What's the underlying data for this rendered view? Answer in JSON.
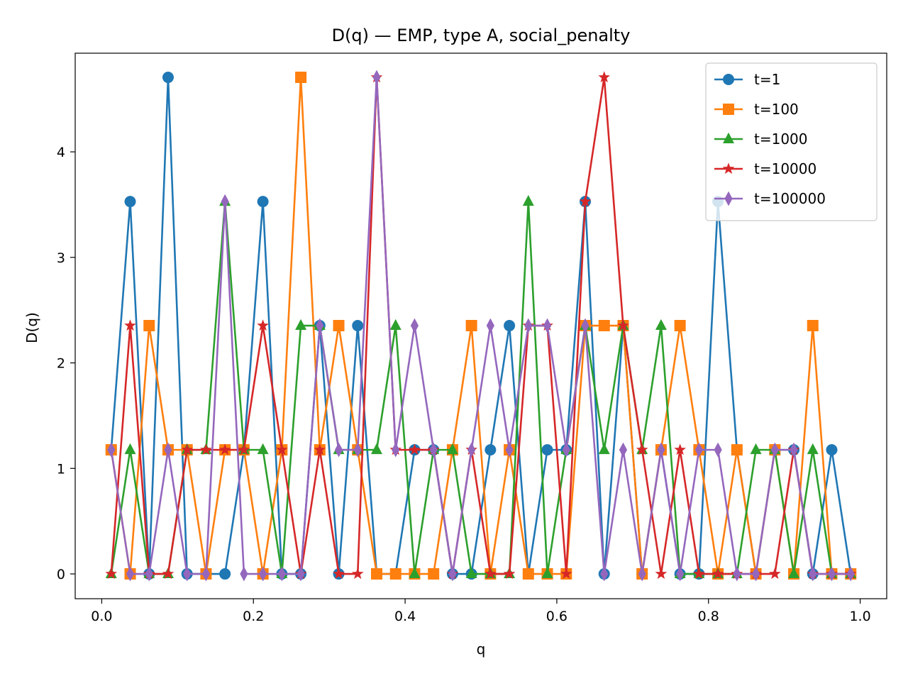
{
  "chart_data": {
    "type": "line",
    "title": "D(q) — EMP, type A, social_penalty",
    "xlabel": "q",
    "ylabel": "D(q)",
    "xlim": [
      -0.035,
      1.035
    ],
    "ylim": [
      -0.235,
      4.935
    ],
    "xticks": [
      0.0,
      0.2,
      0.4,
      0.6,
      0.8,
      1.0
    ],
    "xtick_labels": [
      "0.0",
      "0.2",
      "0.4",
      "0.6",
      "0.8",
      "1.0"
    ],
    "yticks": [
      0,
      1,
      2,
      3,
      4
    ],
    "ytick_labels": [
      "0",
      "1",
      "2",
      "3",
      "4"
    ],
    "grid": false,
    "legend_position": "upper right",
    "x": [
      0.0125,
      0.0375,
      0.0625,
      0.0875,
      0.1125,
      0.1375,
      0.1625,
      0.1875,
      0.2125,
      0.2375,
      0.2625,
      0.2875,
      0.3125,
      0.3375,
      0.3625,
      0.3875,
      0.4125,
      0.4375,
      0.4625,
      0.4875,
      0.5125,
      0.5375,
      0.5625,
      0.5875,
      0.6125,
      0.6375,
      0.6625,
      0.6875,
      0.7125,
      0.7375,
      0.7625,
      0.7875,
      0.8125,
      0.8375,
      0.8625,
      0.8875,
      0.9125,
      0.9375,
      0.9625,
      0.9875
    ],
    "series": [
      {
        "name": "t=1",
        "color": "#1f77b4",
        "marker": "circle",
        "values": [
          1.176,
          3.529,
          0,
          4.706,
          0,
          0,
          0,
          1.176,
          3.529,
          0,
          0,
          2.353,
          0,
          2.353,
          0,
          0,
          1.176,
          1.176,
          0,
          0,
          1.176,
          2.353,
          0,
          1.176,
          1.176,
          3.529,
          0,
          2.353,
          0,
          1.176,
          0,
          0,
          3.529,
          1.176,
          0,
          1.176,
          1.176,
          0,
          1.176,
          0
        ]
      },
      {
        "name": "t=100",
        "color": "#ff7f0e",
        "marker": "square",
        "values": [
          1.176,
          0,
          2.353,
          1.176,
          1.176,
          0,
          1.176,
          1.176,
          0,
          1.176,
          4.706,
          1.176,
          2.353,
          1.176,
          0,
          0,
          0,
          0,
          1.176,
          2.353,
          0,
          1.176,
          0,
          0,
          0,
          2.353,
          2.353,
          2.353,
          0,
          1.176,
          2.353,
          1.176,
          0,
          1.176,
          0,
          1.176,
          0,
          2.353,
          0,
          0
        ]
      },
      {
        "name": "t=1000",
        "color": "#2ca02c",
        "marker": "triangle",
        "values": [
          0,
          1.176,
          0,
          0,
          1.176,
          1.176,
          3.529,
          1.176,
          1.176,
          0,
          2.353,
          2.353,
          1.176,
          1.176,
          1.176,
          2.353,
          0,
          1.176,
          1.176,
          0,
          0,
          0,
          3.529,
          0,
          1.176,
          2.353,
          1.176,
          2.353,
          1.176,
          2.353,
          0,
          0,
          0,
          0,
          1.176,
          1.176,
          0,
          1.176,
          0,
          0
        ]
      },
      {
        "name": "t=10000",
        "color": "#d62728",
        "marker": "star",
        "values": [
          0,
          2.353,
          0,
          0,
          1.176,
          1.176,
          1.176,
          1.176,
          2.353,
          1.176,
          0,
          1.176,
          0,
          0,
          4.706,
          1.176,
          1.176,
          1.176,
          0,
          1.176,
          0,
          0,
          2.353,
          2.353,
          0,
          3.529,
          4.706,
          2.353,
          1.176,
          0,
          1.176,
          0,
          0,
          0,
          0,
          0,
          1.176,
          0,
          0,
          0
        ]
      },
      {
        "name": "t=100000",
        "color": "#9467bd",
        "marker": "thin_diamond",
        "values": [
          1.176,
          0,
          0,
          1.176,
          0,
          0,
          3.529,
          0,
          0,
          0,
          0,
          2.353,
          1.176,
          1.176,
          4.706,
          1.176,
          2.353,
          1.176,
          0,
          1.176,
          2.353,
          1.176,
          2.353,
          2.353,
          1.176,
          2.353,
          0,
          1.176,
          0,
          1.176,
          0,
          1.176,
          1.176,
          0,
          0,
          1.176,
          1.176,
          0,
          0,
          0
        ]
      }
    ]
  }
}
